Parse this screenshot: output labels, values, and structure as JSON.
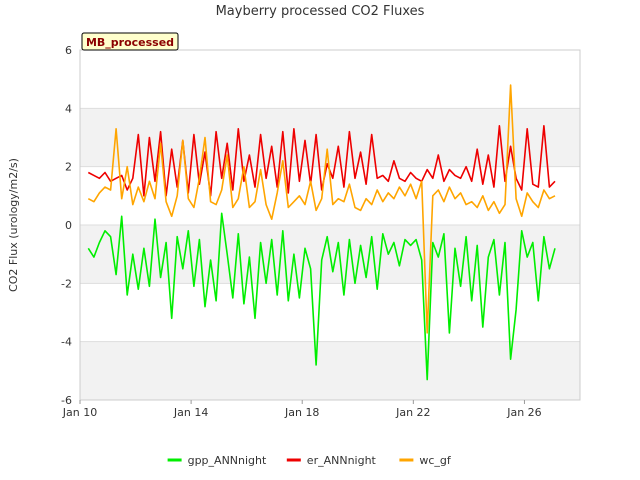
{
  "chart_data": {
    "type": "line",
    "title": "Mayberry processed CO2 Fluxes",
    "ylabel": "CO2 Flux (urology/m2/s)",
    "xlabel": "",
    "badge": "MB_processed",
    "ylim": [
      -6,
      6
    ],
    "yticks": [
      -6,
      -4,
      -2,
      0,
      2,
      4,
      6
    ],
    "xlim": [
      10,
      28
    ],
    "xticks": [
      {
        "value": 10,
        "label": "Jan 10"
      },
      {
        "value": 14,
        "label": "Jan 14"
      },
      {
        "value": 18,
        "label": "Jan 18"
      },
      {
        "value": 22,
        "label": "Jan 22"
      },
      {
        "value": 26,
        "label": "Jan 26"
      }
    ],
    "series": [
      {
        "name": "gpp_ANNnight",
        "color": "#00ee00",
        "x": [
          10.3,
          10.5,
          10.7,
          10.9,
          11.1,
          11.3,
          11.5,
          11.7,
          11.9,
          12.1,
          12.3,
          12.5,
          12.7,
          12.9,
          13.1,
          13.3,
          13.5,
          13.7,
          13.9,
          14.1,
          14.3,
          14.5,
          14.7,
          14.9,
          15.1,
          15.3,
          15.5,
          15.7,
          15.9,
          16.1,
          16.3,
          16.5,
          16.7,
          16.9,
          17.1,
          17.3,
          17.5,
          17.7,
          17.9,
          18.1,
          18.3,
          18.5,
          18.7,
          18.9,
          19.1,
          19.3,
          19.5,
          19.7,
          19.9,
          20.1,
          20.3,
          20.5,
          20.7,
          20.9,
          21.1,
          21.3,
          21.5,
          21.7,
          21.9,
          22.1,
          22.3,
          22.5,
          22.7,
          22.9,
          23.1,
          23.3,
          23.5,
          23.7,
          23.9,
          24.1,
          24.3,
          24.5,
          24.7,
          24.9,
          25.1,
          25.3,
          25.5,
          25.7,
          25.9,
          26.1,
          26.3,
          26.5,
          26.7,
          26.9,
          27.1
        ],
        "values": [
          -0.8,
          -1.1,
          -0.6,
          -0.2,
          -0.4,
          -1.7,
          0.3,
          -2.4,
          -1.0,
          -2.2,
          -0.8,
          -2.1,
          0.2,
          -1.8,
          -0.6,
          -3.2,
          -0.4,
          -1.5,
          -0.2,
          -2.1,
          -0.5,
          -2.8,
          -1.2,
          -2.6,
          0.4,
          -1.0,
          -2.5,
          -0.3,
          -2.7,
          -1.1,
          -3.2,
          -0.6,
          -2.0,
          -0.5,
          -2.4,
          -0.2,
          -2.6,
          -1.0,
          -2.5,
          -0.8,
          -1.5,
          -4.8,
          -1.2,
          -0.4,
          -1.6,
          -0.6,
          -2.4,
          -0.5,
          -2.0,
          -0.7,
          -1.8,
          -0.4,
          -2.2,
          -0.3,
          -1.0,
          -0.6,
          -1.4,
          -0.5,
          -0.7,
          -0.5,
          -1.2,
          -5.3,
          -0.6,
          -1.1,
          -0.3,
          -3.7,
          -0.8,
          -2.1,
          -0.4,
          -2.6,
          -0.7,
          -3.5,
          -1.1,
          -0.5,
          -2.4,
          -0.6,
          -4.6,
          -2.9,
          -0.2,
          -1.1,
          -0.6,
          -2.6,
          -0.4,
          -1.5,
          -0.8
        ]
      },
      {
        "name": "er_ANNnight",
        "color": "#ee0000",
        "x": [
          10.3,
          10.5,
          10.7,
          10.9,
          11.1,
          11.3,
          11.5,
          11.7,
          11.9,
          12.1,
          12.3,
          12.5,
          12.7,
          12.9,
          13.1,
          13.3,
          13.5,
          13.7,
          13.9,
          14.1,
          14.3,
          14.5,
          14.7,
          14.9,
          15.1,
          15.3,
          15.5,
          15.7,
          15.9,
          16.1,
          16.3,
          16.5,
          16.7,
          16.9,
          17.1,
          17.3,
          17.5,
          17.7,
          17.9,
          18.1,
          18.3,
          18.5,
          18.7,
          18.9,
          19.1,
          19.3,
          19.5,
          19.7,
          19.9,
          20.1,
          20.3,
          20.5,
          20.7,
          20.9,
          21.1,
          21.3,
          21.5,
          21.7,
          21.9,
          22.1,
          22.3,
          22.5,
          22.7,
          22.9,
          23.1,
          23.3,
          23.5,
          23.7,
          23.9,
          24.1,
          24.3,
          24.5,
          24.7,
          24.9,
          25.1,
          25.3,
          25.5,
          25.7,
          25.9,
          26.1,
          26.3,
          26.5,
          26.7,
          26.9,
          27.1
        ],
        "values": [
          1.8,
          1.7,
          1.6,
          1.8,
          1.5,
          1.6,
          1.7,
          1.2,
          1.6,
          3.1,
          1.0,
          3.0,
          1.5,
          3.2,
          1.0,
          2.6,
          1.3,
          2.9,
          1.1,
          3.1,
          1.4,
          2.5,
          1.0,
          3.2,
          1.6,
          2.8,
          1.2,
          3.3,
          1.5,
          2.4,
          1.3,
          3.1,
          1.6,
          2.7,
          1.3,
          3.2,
          1.1,
          3.3,
          1.5,
          2.9,
          1.4,
          3.1,
          1.2,
          2.1,
          1.6,
          2.7,
          1.3,
          3.2,
          1.6,
          2.5,
          1.4,
          3.1,
          1.6,
          1.7,
          1.5,
          2.2,
          1.6,
          1.5,
          1.8,
          1.6,
          1.5,
          1.9,
          1.6,
          2.4,
          1.5,
          1.9,
          1.7,
          1.6,
          2.0,
          1.5,
          2.6,
          1.4,
          2.4,
          1.3,
          3.4,
          1.5,
          2.7,
          1.6,
          1.2,
          3.3,
          1.4,
          1.3,
          3.4,
          1.3,
          1.5
        ]
      },
      {
        "name": "wc_gf",
        "color": "#ffa500",
        "x": [
          10.3,
          10.5,
          10.7,
          10.9,
          11.1,
          11.3,
          11.5,
          11.7,
          11.9,
          12.1,
          12.3,
          12.5,
          12.7,
          12.9,
          13.1,
          13.3,
          13.5,
          13.7,
          13.9,
          14.1,
          14.3,
          14.5,
          14.7,
          14.9,
          15.1,
          15.3,
          15.5,
          15.7,
          15.9,
          16.1,
          16.3,
          16.5,
          16.7,
          16.9,
          17.1,
          17.3,
          17.5,
          17.7,
          17.9,
          18.1,
          18.3,
          18.5,
          18.7,
          18.9,
          19.1,
          19.3,
          19.5,
          19.7,
          19.9,
          20.1,
          20.3,
          20.5,
          20.7,
          20.9,
          21.1,
          21.3,
          21.5,
          21.7,
          21.9,
          22.1,
          22.3,
          22.5,
          22.7,
          22.9,
          23.1,
          23.3,
          23.5,
          23.7,
          23.9,
          24.1,
          24.3,
          24.5,
          24.7,
          24.9,
          25.1,
          25.3,
          25.5,
          25.7,
          25.9,
          26.1,
          26.3,
          26.5,
          26.7,
          26.9,
          27.1
        ],
        "values": [
          0.9,
          0.8,
          1.1,
          1.3,
          1.2,
          3.3,
          0.9,
          2.0,
          0.7,
          1.3,
          0.8,
          1.5,
          0.9,
          2.8,
          0.8,
          0.3,
          1.0,
          2.9,
          0.9,
          0.6,
          1.6,
          3.0,
          0.8,
          0.7,
          1.2,
          2.4,
          0.6,
          0.9,
          2.0,
          0.6,
          0.8,
          1.9,
          0.7,
          0.2,
          1.1,
          2.2,
          0.6,
          0.8,
          1.0,
          0.7,
          1.5,
          0.5,
          0.9,
          2.6,
          0.7,
          0.9,
          0.8,
          1.4,
          0.6,
          0.5,
          0.9,
          0.7,
          1.2,
          0.8,
          1.1,
          0.9,
          1.3,
          1.0,
          1.4,
          0.9,
          1.5,
          -3.7,
          1.0,
          1.2,
          0.8,
          1.3,
          0.9,
          1.1,
          0.7,
          0.8,
          0.6,
          1.0,
          0.5,
          0.8,
          0.4,
          0.7,
          4.8,
          0.9,
          0.3,
          1.1,
          0.8,
          0.6,
          1.2,
          0.9,
          1.0
        ]
      }
    ],
    "background_bands": "alternating grey/white between y ticks",
    "legend_position": "bottom-center"
  }
}
